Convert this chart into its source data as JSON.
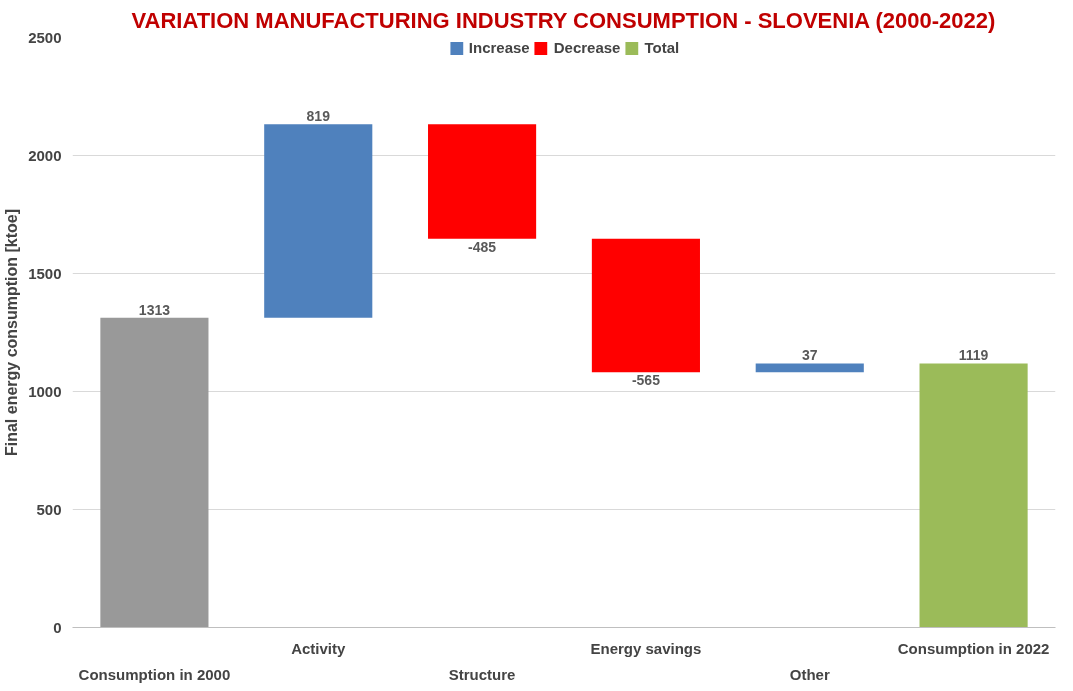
{
  "chart_data": {
    "type": "bar",
    "title": "VARIATION MANUFACTURING INDUSTRY CONSUMPTION - SLOVENIA (2000-2022)",
    "ylabel": "Final energy consumption [ktoe]",
    "categories": [
      "Consumption in 2000",
      "Activity",
      "Structure",
      "Energy savings",
      "Other",
      "Consumption in 2022"
    ],
    "series": [
      {
        "name": "Increase",
        "color": "#4f81bd",
        "values": [
          null,
          819,
          null,
          null,
          37,
          null
        ],
        "base": [
          null,
          1313,
          null,
          null,
          1082,
          null
        ]
      },
      {
        "name": "Decrease",
        "color": "#ff0000",
        "values": [
          null,
          null,
          -485,
          -565,
          null,
          null
        ],
        "base": [
          null,
          null,
          2132,
          1647,
          null,
          null
        ]
      },
      {
        "name": "Total",
        "color": "#9bbb59",
        "values": [
          null,
          null,
          null,
          null,
          null,
          1119
        ],
        "base": [
          null,
          null,
          null,
          null,
          null,
          0
        ]
      },
      {
        "color": "#999999",
        "values": [
          1313,
          null,
          null,
          null,
          null,
          null
        ],
        "base": [
          0,
          null,
          null,
          null,
          null,
          null
        ]
      }
    ],
    "ylim": [
      0,
      2500
    ],
    "yticks": [
      0,
      500,
      1000,
      1500,
      2000,
      2500
    ],
    "grid": "y",
    "legend": "top",
    "data_labels": true
  }
}
